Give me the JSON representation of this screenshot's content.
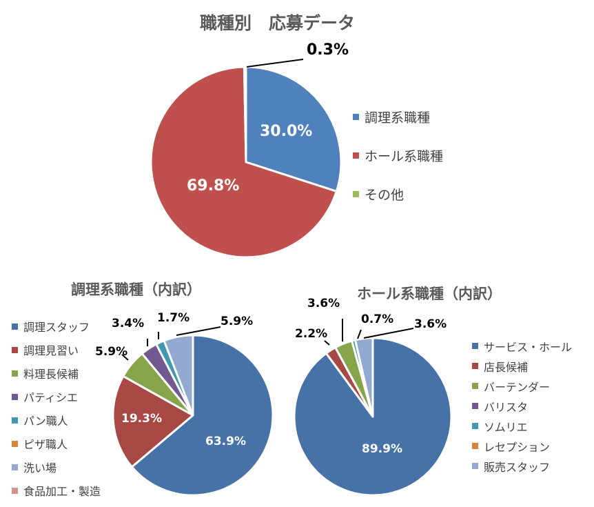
{
  "chart_data": [
    {
      "type": "pie",
      "title": "職種別　応募データ",
      "categories": [
        "調理系職種",
        "ホール系職種",
        "その他"
      ],
      "values": [
        30.0,
        69.8,
        0.3
      ],
      "labels": [
        "30.0%",
        "69.8%",
        "0.3%"
      ],
      "colors": [
        "#4F81BD",
        "#C0504D",
        "#9BBB59"
      ],
      "legend_position": "right"
    },
    {
      "type": "pie",
      "title": "調理系職種（内訳）",
      "categories": [
        "調理スタッフ",
        "調理見習い",
        "料理長候補",
        "パティシエ",
        "パン職人",
        "ピザ職人",
        "洗い場",
        "食品加工・製造"
      ],
      "values": [
        63.9,
        19.3,
        5.9,
        3.4,
        1.7,
        0,
        5.9,
        0
      ],
      "labels": [
        "63.9%",
        "19.3%",
        "5.9%",
        "3.4%",
        "1.7%",
        "",
        "5.9%",
        ""
      ],
      "colors": [
        "#4672A8",
        "#A84845",
        "#86A44A",
        "#71588F",
        "#4198AF",
        "#DB843D",
        "#93A9CF",
        "#D19392"
      ],
      "legend_position": "left"
    },
    {
      "type": "pie",
      "title": "ホール系職種（内訳）",
      "categories": [
        "サービス・ホール",
        "店長候補",
        "バーテンダー",
        "バリスタ",
        "ソムリエ",
        "レセプション",
        "販売スタッフ"
      ],
      "values": [
        89.9,
        2.2,
        3.6,
        0,
        0.7,
        0,
        3.6
      ],
      "labels": [
        "89.9%",
        "2.2%",
        "3.6%",
        "",
        "0.7%",
        "",
        "3.6%"
      ],
      "colors": [
        "#4672A8",
        "#A84845",
        "#86A44A",
        "#71588F",
        "#4198AF",
        "#DB843D",
        "#93A9CF"
      ],
      "legend_position": "right"
    }
  ]
}
